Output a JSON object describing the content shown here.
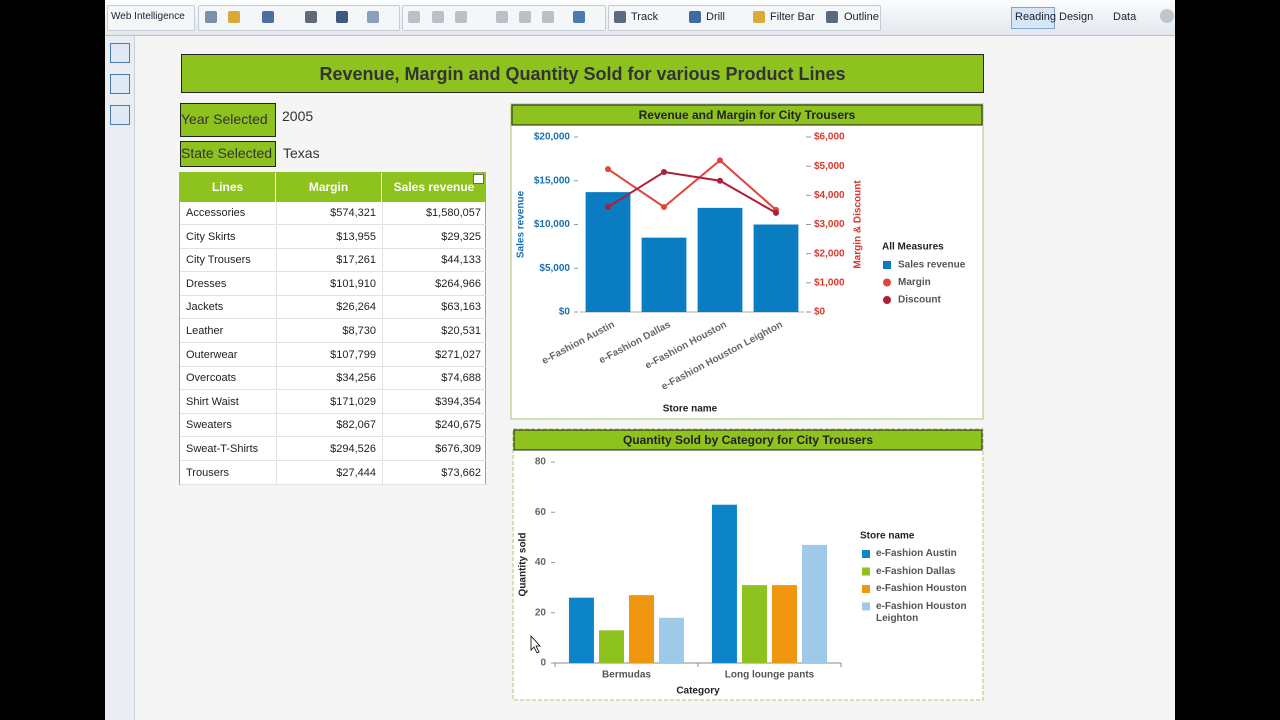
{
  "toolbar": {
    "app_menu": "Web Intelligence",
    "buttons": [
      "Track",
      "Drill",
      "Filter Bar",
      "Outline"
    ],
    "modes": [
      "Reading",
      "Design",
      "Data"
    ]
  },
  "report": {
    "title": "Revenue, Margin and Quantity Sold for various Product Lines",
    "filters": [
      {
        "label": "Year Selected",
        "value": "2005"
      },
      {
        "label": "State Selected",
        "value": "Texas"
      }
    ]
  },
  "table": {
    "columns": [
      "Lines",
      "Margin",
      "Sales revenue"
    ],
    "rows": [
      [
        "Accessories",
        "$574,321",
        "$1,580,057"
      ],
      [
        "City Skirts",
        "$13,955",
        "$29,325"
      ],
      [
        "City Trousers",
        "$17,261",
        "$44,133"
      ],
      [
        "Dresses",
        "$101,910",
        "$264,966"
      ],
      [
        "Jackets",
        "$26,264",
        "$63,163"
      ],
      [
        "Leather",
        "$8,730",
        "$20,531"
      ],
      [
        "Outerwear",
        "$107,799",
        "$271,027"
      ],
      [
        "Overcoats",
        "$34,256",
        "$74,688"
      ],
      [
        "Shirt Waist",
        "$171,029",
        "$394,354"
      ],
      [
        "Sweaters",
        "$82,067",
        "$240,675"
      ],
      [
        "Sweat-T-Shirts",
        "$294,526",
        "$676,309"
      ],
      [
        "Trousers",
        "$27,444",
        "$73,662"
      ]
    ]
  },
  "chart_data": [
    {
      "type": "combo",
      "title": "Revenue and Margin for City Trousers",
      "x_label": "Store name",
      "y_label": "Sales revenue",
      "y2_label": "Margin & Discount",
      "legend_title": "All Measures",
      "categories": [
        "e-Fashion Austin",
        "e-Fashion Dallas",
        "e-Fashion Houston",
        "e-Fashion Houston Leighton"
      ],
      "series": [
        {
          "name": "Sales revenue",
          "kind": "bar",
          "color": "#0a7cc1",
          "values": [
            13700,
            8500,
            11900,
            10000
          ]
        },
        {
          "name": "Margin",
          "kind": "line",
          "axis": "y2",
          "color": "#e0443a",
          "values": [
            4900,
            3600,
            5200,
            3500
          ]
        },
        {
          "name": "Discount",
          "kind": "line",
          "axis": "y2",
          "color": "#b01c3c",
          "values": [
            3600,
            4800,
            4500,
            3400
          ]
        }
      ],
      "ylim": [
        0,
        20000
      ],
      "yticks": [
        {
          "value": 0,
          "label": "$0"
        },
        {
          "value": 5000,
          "label": "$5,000"
        },
        {
          "value": 10000,
          "label": "$10,000"
        },
        {
          "value": 15000,
          "label": "$15,000"
        },
        {
          "value": 20000,
          "label": "$20,000"
        }
      ],
      "y2lim": [
        0,
        6000
      ],
      "y2ticks": [
        {
          "value": 0,
          "label": "$0"
        },
        {
          "value": 1000,
          "label": "$1,000"
        },
        {
          "value": 2000,
          "label": "$2,000"
        },
        {
          "value": 3000,
          "label": "$3,000"
        },
        {
          "value": 4000,
          "label": "$4,000"
        },
        {
          "value": 5000,
          "label": "$5,000"
        },
        {
          "value": 6000,
          "label": "$6,000"
        }
      ]
    },
    {
      "type": "bar",
      "title": "Quantity Sold by Category for City Trousers",
      "x_label": "Category",
      "y_label": "Quantity sold",
      "legend_title": "Store name",
      "categories": [
        "Bermudas",
        "Long lounge pants"
      ],
      "series": [
        {
          "name": "e-Fashion Austin",
          "color": "#0e84c8",
          "values": [
            26,
            63
          ]
        },
        {
          "name": "e-Fashion Dallas",
          "color": "#8dc21f",
          "values": [
            13,
            31
          ]
        },
        {
          "name": "e-Fashion Houston",
          "color": "#f0960e",
          "values": [
            27,
            31
          ]
        },
        {
          "name": "e-Fashion Houston Leighton",
          "color": "#9ec9e8",
          "values": [
            18,
            47
          ]
        }
      ],
      "ylim": [
        0,
        80
      ],
      "yticks": [
        0,
        20,
        40,
        60,
        80
      ]
    }
  ]
}
